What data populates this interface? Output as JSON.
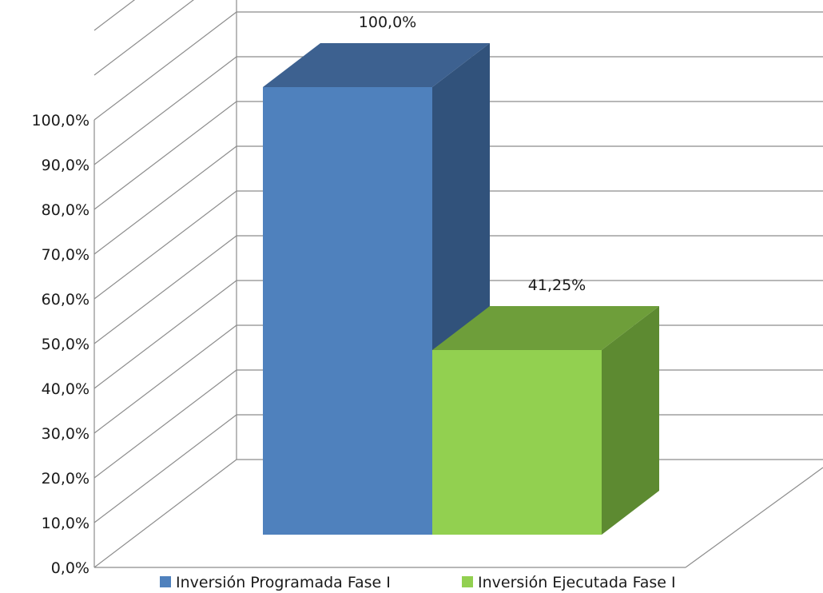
{
  "chart_data": {
    "type": "bar",
    "categories": [
      "Inversión Programada Fase I",
      "Inversión Ejecutada Fase I"
    ],
    "values": [
      100.0,
      41.25
    ],
    "value_labels": [
      "100,0%",
      "41,25%"
    ],
    "yticks": [
      0,
      10,
      20,
      30,
      40,
      50,
      60,
      70,
      80,
      90,
      100
    ],
    "ytick_labels": [
      "0,0%",
      "10,0%",
      "20,0%",
      "30,0%",
      "40,0%",
      "50,0%",
      "60,0%",
      "70,0%",
      "80,0%",
      "90,0%",
      "100,0%"
    ],
    "ylim": [
      0,
      110
    ],
    "grid": true,
    "style": "3d-column",
    "legend": "bottom",
    "colors": {
      "front": [
        "#4f81bd",
        "#92d050"
      ],
      "top": [
        "#3d6190",
        "#6e9e3a"
      ],
      "side": [
        "#31527b",
        "#5d8a31"
      ],
      "grid": "#8c8c8c"
    },
    "title": "",
    "xlabel": "",
    "ylabel": ""
  }
}
